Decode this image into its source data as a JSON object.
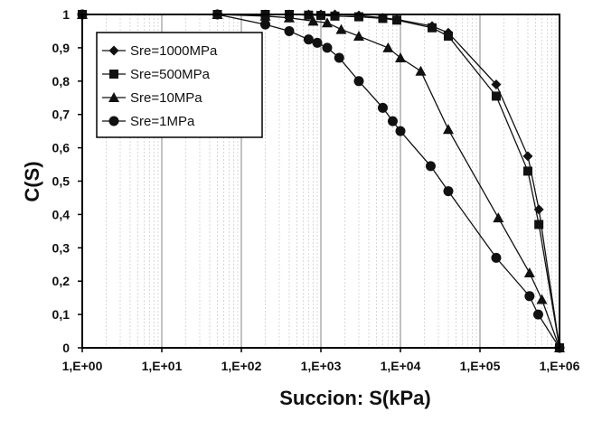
{
  "chart_data": {
    "type": "line",
    "xlabel": "Succion: S(kPa)",
    "ylabel": "C(S)",
    "x_scale": "log",
    "xlim": [
      1,
      1000000
    ],
    "ylim": [
      0,
      1
    ],
    "x_tick_labels": [
      "1,E+00",
      "1,E+01",
      "1,E+02",
      "1,E+03",
      "1,E+04",
      "1,E+05",
      "1,E+06"
    ],
    "y_tick_labels": [
      "0",
      "0,1",
      "0,2",
      "0,3",
      "0,4",
      "0,5",
      "0,6",
      "0,7",
      "0,8",
      "0,9",
      "1"
    ],
    "grid": "vertical minor and major lines",
    "legend_position": "top-left",
    "series": [
      {
        "name": "Sre=1000MPa",
        "marker": "diamond",
        "x": [
          1,
          50,
          200,
          400,
          700,
          1000,
          1500,
          3000,
          6000,
          9000,
          25000,
          40000,
          160000,
          400000,
          550000,
          1000000
        ],
        "y": [
          1,
          1,
          1,
          1,
          1,
          1,
          1,
          0.997,
          0.99,
          0.985,
          0.965,
          0.945,
          0.79,
          0.575,
          0.415,
          0
        ]
      },
      {
        "name": "Sre=500MPa",
        "marker": "square",
        "x": [
          1,
          50,
          200,
          400,
          700,
          1000,
          1500,
          3000,
          6000,
          9000,
          25000,
          40000,
          160000,
          400000,
          550000,
          1000000
        ],
        "y": [
          1,
          1,
          1,
          1,
          0.998,
          0.997,
          0.995,
          0.993,
          0.988,
          0.983,
          0.96,
          0.935,
          0.755,
          0.53,
          0.37,
          0
        ]
      },
      {
        "name": "Sre=10MPa",
        "marker": "triangle",
        "x": [
          1,
          50,
          200,
          400,
          800,
          1200,
          1800,
          3000,
          7000,
          10000,
          18000,
          40000,
          170000,
          420000,
          600000,
          1000000
        ],
        "y": [
          1,
          1,
          0.995,
          0.99,
          0.98,
          0.975,
          0.955,
          0.935,
          0.9,
          0.87,
          0.83,
          0.655,
          0.39,
          0.225,
          0.145,
          0
        ]
      },
      {
        "name": "Sre=1MPa",
        "marker": "circle",
        "x": [
          1,
          50,
          200,
          400,
          700,
          900,
          1200,
          1700,
          3000,
          6000,
          8000,
          10000,
          24000,
          40000,
          160000,
          420000,
          540000,
          1000000
        ],
        "y": [
          1,
          1,
          0.97,
          0.95,
          0.925,
          0.915,
          0.9,
          0.87,
          0.8,
          0.72,
          0.68,
          0.65,
          0.545,
          0.47,
          0.27,
          0.155,
          0.1,
          0
        ]
      }
    ]
  }
}
